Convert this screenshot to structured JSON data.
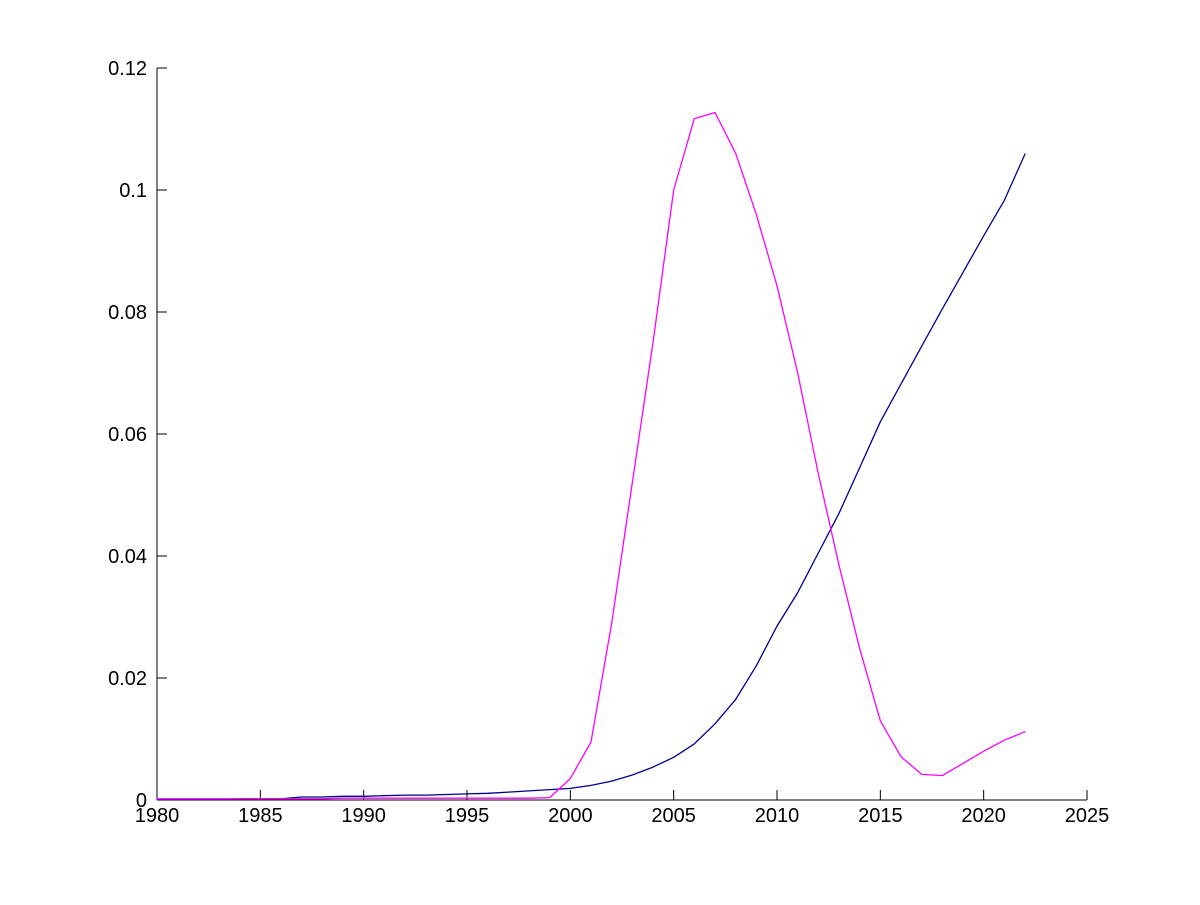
{
  "chart_data": {
    "type": "line",
    "title": "",
    "xlabel": "",
    "ylabel": "",
    "grid": false,
    "legend_position": "none",
    "background_color": "#ffffff",
    "axis_color": "#000000",
    "xlim": [
      1980,
      2025
    ],
    "ylim": [
      0,
      0.12
    ],
    "x_ticks": [
      1980,
      1985,
      1990,
      1995,
      2000,
      2005,
      2010,
      2015,
      2020,
      2025
    ],
    "x_tick_labels": [
      "1980",
      "1985",
      "1990",
      "1995",
      "2000",
      "2005",
      "2010",
      "2015",
      "2020",
      "2025"
    ],
    "y_ticks": [
      0,
      0.02,
      0.04,
      0.06,
      0.08,
      0.1,
      0.12
    ],
    "y_tick_labels": [
      "0",
      "0.02",
      "0.04",
      "0.06",
      "0.08",
      "0.1",
      "0.12"
    ],
    "x": [
      1980,
      1981,
      1982,
      1983,
      1984,
      1985,
      1986,
      1987,
      1988,
      1989,
      1990,
      1991,
      1992,
      1993,
      1994,
      1995,
      1996,
      1997,
      1998,
      1999,
      2000,
      2001,
      2002,
      2003,
      2004,
      2005,
      2006,
      2007,
      2008,
      2009,
      2010,
      2011,
      2012,
      2013,
      2014,
      2015,
      2016,
      2017,
      2018,
      2019,
      2020,
      2021,
      2022
    ],
    "series": [
      {
        "name": "dark-blue-series",
        "color": "#00008B",
        "values": [
          0.0001,
          0.0001,
          0.0001,
          0.0001,
          0.0002,
          0.0002,
          0.0002,
          0.0005,
          0.0005,
          0.0006,
          0.0006,
          0.0007,
          0.0008,
          0.0008,
          0.0009,
          0.001,
          0.0011,
          0.0013,
          0.0015,
          0.0017,
          0.0019,
          0.0024,
          0.0031,
          0.0041,
          0.0054,
          0.007,
          0.0092,
          0.0125,
          0.0165,
          0.022,
          0.0285,
          0.034,
          0.0405,
          0.047,
          0.0545,
          0.062,
          0.0682,
          0.0744,
          0.0805,
          0.0865,
          0.0925,
          0.0983,
          0.1059
        ]
      },
      {
        "name": "magenta-series",
        "color": "#FF00FF",
        "values": [
          0.0002,
          0.0002,
          0.0002,
          0.0002,
          0.0002,
          0.0002,
          0.0002,
          0.0002,
          0.0002,
          0.0003,
          0.0003,
          0.0003,
          0.0003,
          0.0003,
          0.0003,
          0.0003,
          0.0003,
          0.0003,
          0.0003,
          0.0004,
          0.0035,
          0.0095,
          0.029,
          0.052,
          0.075,
          0.1,
          0.1117,
          0.1127,
          0.106,
          0.096,
          0.0843,
          0.07,
          0.0535,
          0.0385,
          0.0248,
          0.013,
          0.0071,
          0.0042,
          0.004,
          0.006,
          0.008,
          0.0098,
          0.0112
        ]
      }
    ]
  }
}
